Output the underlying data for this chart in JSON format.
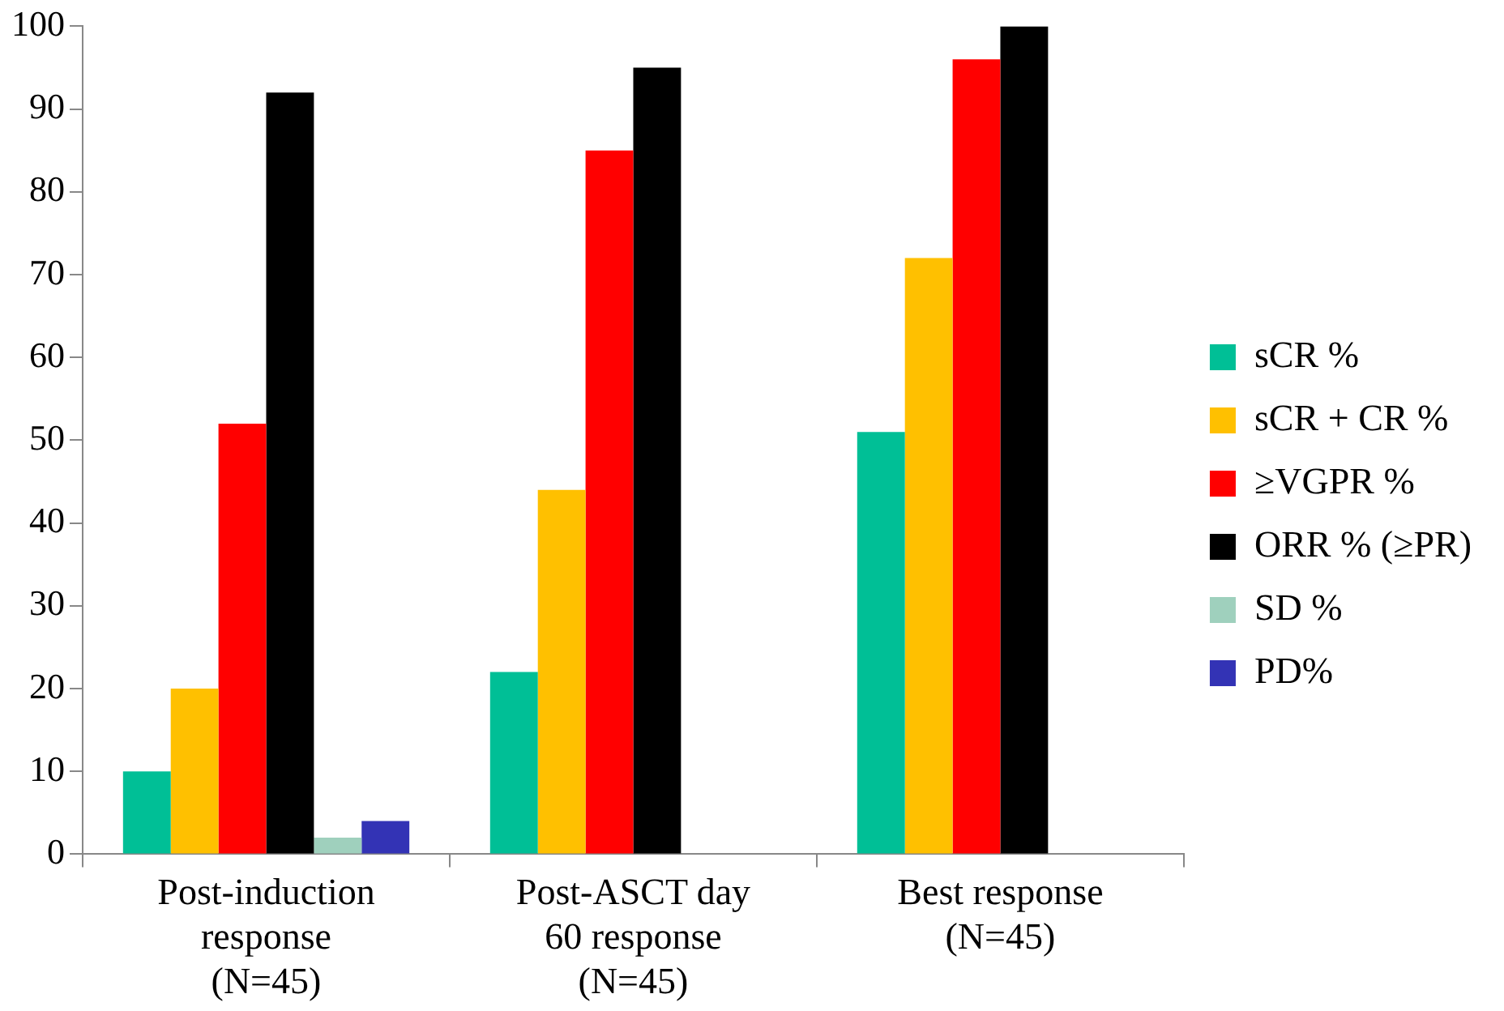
{
  "chart_data": {
    "type": "bar",
    "categories": [
      "Post-induction response (N=45)",
      "Post-ASCT day 60 response (N=45)",
      "Best response (N=45)"
    ],
    "series": [
      {
        "name": "sCR %",
        "color": "#00bf96",
        "values": [
          10,
          22,
          51
        ]
      },
      {
        "name": "sCR + CR %",
        "color": "#ffc000",
        "values": [
          20,
          44,
          72
        ]
      },
      {
        "name": "≥VGPR %",
        "color": "#ff0000",
        "values": [
          52,
          85,
          96
        ]
      },
      {
        "name": "ORR % (≥PR)",
        "color": "#000000",
        "values": [
          92,
          95,
          100
        ]
      },
      {
        "name": "SD %",
        "color": "#9fd0bd",
        "values": [
          2,
          null,
          null
        ]
      },
      {
        "name": "PD%",
        "color": "#3333b5",
        "values": [
          4,
          null,
          null
        ]
      }
    ],
    "ylim": [
      0,
      100
    ],
    "yticks": [
      0,
      10,
      20,
      30,
      40,
      50,
      60,
      70,
      80,
      90,
      100
    ],
    "grid": false,
    "legend": "right"
  }
}
